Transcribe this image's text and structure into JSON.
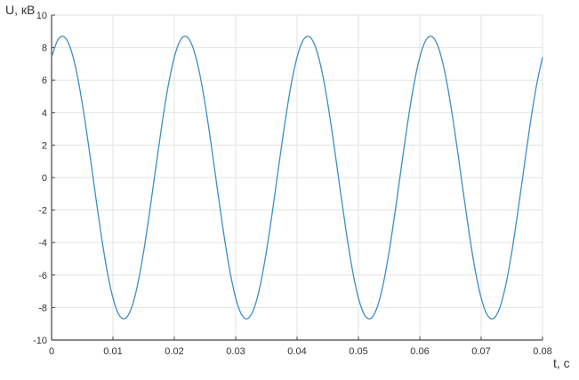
{
  "chart_data": {
    "type": "line",
    "xlabel": "t, c",
    "ylabel": "U, кВ",
    "xlim": [
      0,
      0.08
    ],
    "ylim": [
      -10,
      10
    ],
    "grid": true,
    "xticks": [
      "0",
      "0.01",
      "0.02",
      "0.03",
      "0.04",
      "0.05",
      "0.06",
      "0.07",
      "0.08"
    ],
    "yticks": [
      "10",
      "8",
      "6",
      "4",
      "2",
      "0",
      "-2",
      "-4",
      "-6",
      "-8",
      "-10"
    ],
    "line_color": "#3a8fc7",
    "x_step": 0.001,
    "series": [
      {
        "values": [
          7.41,
          8.46,
          8.67,
          8.04,
          6.63,
          4.56,
          2.05,
          -0.67,
          -3.32,
          -5.64,
          -7.41,
          -8.46,
          -8.67,
          -8.04,
          -6.63,
          -4.56,
          -2.05,
          0.67,
          3.32,
          5.64,
          7.41,
          8.46,
          8.67,
          8.04,
          6.63,
          4.56,
          2.05,
          -0.67,
          -3.32,
          -5.64,
          -7.41,
          -8.46,
          -8.67,
          -8.04,
          -6.63,
          -4.56,
          -2.05,
          0.67,
          3.32,
          5.64,
          7.41,
          8.46,
          8.67,
          8.04,
          6.63,
          4.56,
          2.05,
          -0.67,
          -3.32,
          -5.64,
          -7.41,
          -8.46,
          -8.67,
          -8.04,
          -6.63,
          -4.56,
          -2.05,
          0.67,
          3.32,
          5.64,
          7.41,
          8.46,
          8.67,
          8.04,
          6.63,
          4.56,
          2.05,
          -0.67,
          -3.32,
          -5.64,
          -7.41,
          -8.46,
          -8.67,
          -8.04,
          -6.63,
          -4.56,
          -2.05,
          0.67,
          3.32,
          5.64,
          7.41
        ]
      }
    ]
  }
}
